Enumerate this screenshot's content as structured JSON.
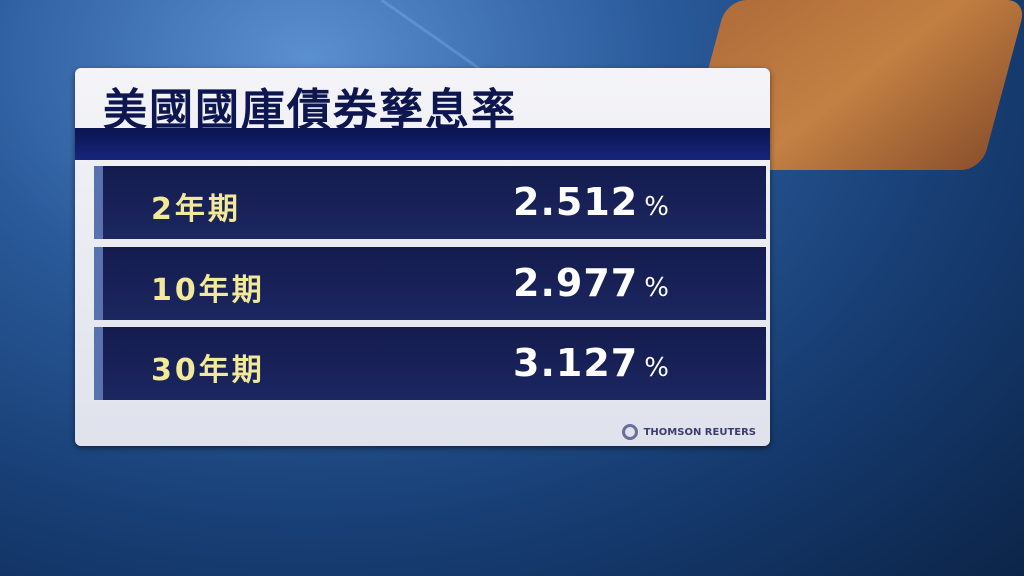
{
  "title": "美國國庫債券孳息率",
  "rows": [
    {
      "label": "2年期",
      "value": "2.512",
      "unit": "%"
    },
    {
      "label": "10年期",
      "value": "2.977",
      "unit": "%"
    },
    {
      "label": "30年期",
      "value": "3.127",
      "unit": "%"
    }
  ],
  "source": "THOMSON REUTERS",
  "colors": {
    "title": "#0e1650",
    "label": "#f2ea9a",
    "row_bg": "#141c4e",
    "accent": "#5872b0"
  }
}
